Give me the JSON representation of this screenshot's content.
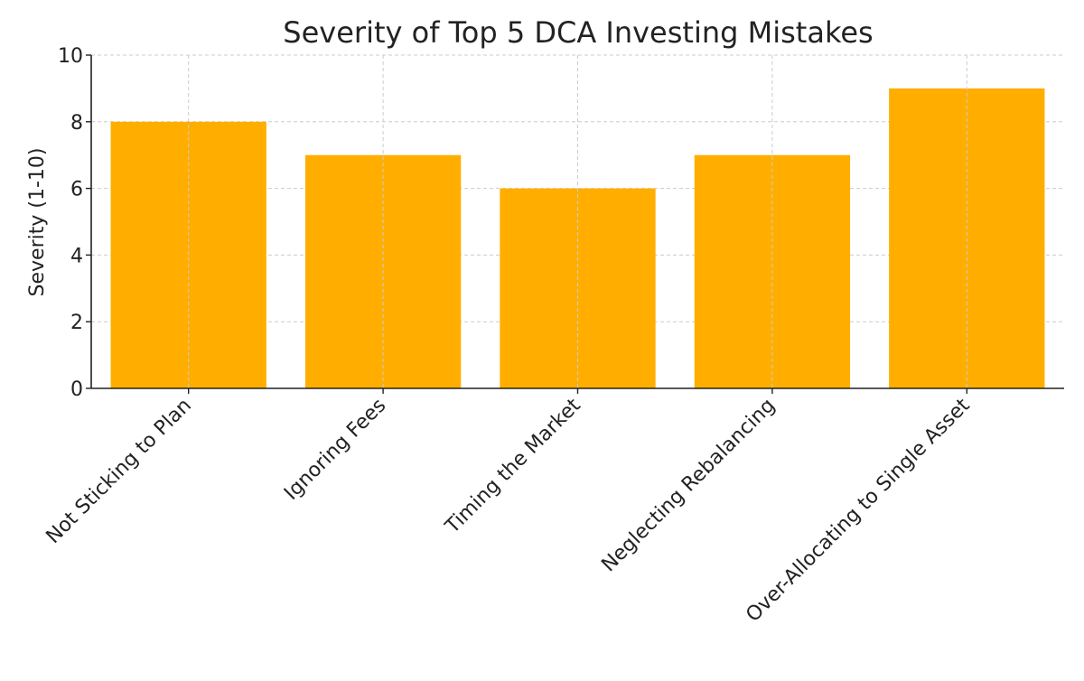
{
  "chart_data": {
    "type": "bar",
    "title": "Severity of Top 5 DCA Investing Mistakes",
    "xlabel": "",
    "ylabel": "Severity (1-10)",
    "categories": [
      "Not Sticking to Plan",
      "Ignoring Fees",
      "Timing the Market",
      "Neglecting Rebalancing",
      "Over-Allocating to Single Asset"
    ],
    "values": [
      8,
      7,
      6,
      7,
      9
    ],
    "ylim": [
      0,
      10
    ],
    "yticks": [
      0,
      2,
      4,
      6,
      8,
      10
    ],
    "grid": true,
    "bar_color": "#FFAE00",
    "grid_color": "#CCCCCC",
    "axis_color": "#222222"
  }
}
